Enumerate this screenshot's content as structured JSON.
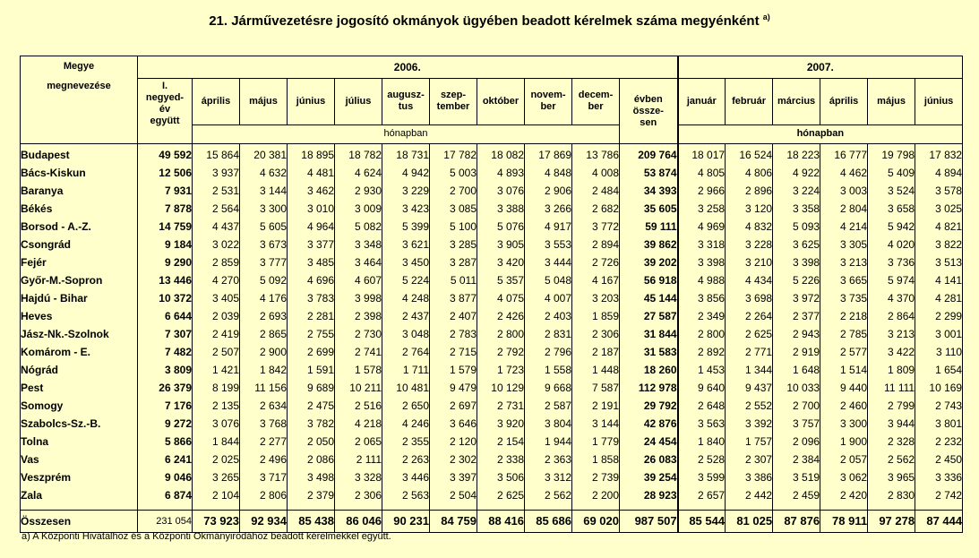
{
  "title": "21. Járművezetésre jogosító okmányok ügyében beadott kérelmek száma megyénként",
  "title_sup": "a)",
  "header": {
    "county_col": [
      "Megye",
      "megnevezése"
    ],
    "year_2006": "2006.",
    "year_2007": "2007.",
    "q1_2006": [
      "I.",
      "negyed-",
      "év",
      "együtt"
    ],
    "months_2006": [
      [
        "április"
      ],
      [
        "május"
      ],
      [
        "június"
      ],
      [
        "július"
      ],
      [
        "augusz-",
        "tus"
      ],
      [
        "szep-",
        "tember"
      ],
      [
        "október"
      ],
      [
        "novem-",
        "ber"
      ],
      [
        "decem-",
        "ber"
      ]
    ],
    "year_total": [
      "évben",
      "össze-",
      "sen"
    ],
    "months_2007": [
      "január",
      "február",
      "március",
      "április",
      "május",
      "június"
    ],
    "honapban": "hónapban"
  },
  "rows": [
    {
      "name": "Budapest",
      "q1": "49 592",
      "m06": [
        "15 864",
        "20 381",
        "18 895",
        "18 782",
        "18 731",
        "17 782",
        "18 082",
        "17 869",
        "13 786"
      ],
      "total": "209 764",
      "m07": [
        "18 017",
        "16 524",
        "18 223",
        "16 777",
        "19 798",
        "17 832"
      ]
    },
    {
      "name": "Bács-Kiskun",
      "q1": "12 506",
      "m06": [
        "3 937",
        "4 632",
        "4 481",
        "4 624",
        "4 942",
        "5 003",
        "4 893",
        "4 848",
        "4 008"
      ],
      "total": "53 874",
      "m07": [
        "4 805",
        "4 806",
        "4 922",
        "4 462",
        "5 409",
        "4 894"
      ]
    },
    {
      "name": "Baranya",
      "q1": "7 931",
      "m06": [
        "2 531",
        "3 144",
        "3 462",
        "2 930",
        "3 229",
        "2 700",
        "3 076",
        "2 906",
        "2 484"
      ],
      "total": "34 393",
      "m07": [
        "2 966",
        "2 896",
        "3 224",
        "3 003",
        "3 524",
        "3 578"
      ]
    },
    {
      "name": "Békés",
      "q1": "7 878",
      "m06": [
        "2 564",
        "3 300",
        "3 010",
        "3 009",
        "3 423",
        "3 085",
        "3 388",
        "3 266",
        "2 682"
      ],
      "total": "35 605",
      "m07": [
        "3 258",
        "3 120",
        "3 358",
        "2 804",
        "3 658",
        "3 025"
      ]
    },
    {
      "name": "Borsod - A.-Z.",
      "q1": "14 759",
      "m06": [
        "4 437",
        "5 605",
        "4 964",
        "5 082",
        "5 399",
        "5 100",
        "5 076",
        "4 917",
        "3 772"
      ],
      "total": "59 111",
      "m07": [
        "4 969",
        "4 832",
        "5 093",
        "4 214",
        "5 942",
        "4 821"
      ]
    },
    {
      "name": "Csongrád",
      "q1": "9 184",
      "m06": [
        "3 022",
        "3 673",
        "3 377",
        "3 348",
        "3 621",
        "3 285",
        "3 905",
        "3 553",
        "2 894"
      ],
      "total": "39 862",
      "m07": [
        "3 318",
        "3 228",
        "3 625",
        "3 305",
        "4 020",
        "3 822"
      ]
    },
    {
      "name": "Fejér",
      "q1": "9 290",
      "m06": [
        "2 859",
        "3 777",
        "3 485",
        "3 464",
        "3 450",
        "3 287",
        "3 420",
        "3 444",
        "2 726"
      ],
      "total": "39 202",
      "m07": [
        "3 398",
        "3 210",
        "3 398",
        "3 213",
        "3 736",
        "3 513"
      ]
    },
    {
      "name": "Győr-M.-Sopron",
      "q1": "13 446",
      "m06": [
        "4 270",
        "5 092",
        "4 696",
        "4 607",
        "5 224",
        "5 011",
        "5 357",
        "5 048",
        "4 167"
      ],
      "total": "56 918",
      "m07": [
        "4 988",
        "4 434",
        "5 226",
        "3 665",
        "5 974",
        "4 141"
      ]
    },
    {
      "name": "Hajdú - Bihar",
      "q1": "10 372",
      "m06": [
        "3 405",
        "4 176",
        "3 783",
        "3 998",
        "4 248",
        "3 877",
        "4 075",
        "4 007",
        "3 203"
      ],
      "total": "45 144",
      "m07": [
        "3 856",
        "3 698",
        "3 972",
        "3 735",
        "4 370",
        "4 281"
      ]
    },
    {
      "name": "Heves",
      "q1": "6 644",
      "m06": [
        "2 039",
        "2 693",
        "2 281",
        "2 398",
        "2 437",
        "2 407",
        "2 426",
        "2 403",
        "1 859"
      ],
      "total": "27 587",
      "m07": [
        "2 349",
        "2 264",
        "2 377",
        "2 218",
        "2 864",
        "2 299"
      ]
    },
    {
      "name": "Jász-Nk.-Szolnok",
      "q1": "7 307",
      "m06": [
        "2 419",
        "2 865",
        "2 755",
        "2 730",
        "3 048",
        "2 783",
        "2 800",
        "2 831",
        "2 306"
      ],
      "total": "31 844",
      "m07": [
        "2 800",
        "2 625",
        "2 943",
        "2 785",
        "3 213",
        "3 001"
      ]
    },
    {
      "name": "Komárom - E.",
      "q1": "7 482",
      "m06": [
        "2 507",
        "2 900",
        "2 699",
        "2 741",
        "2 764",
        "2 715",
        "2 792",
        "2 796",
        "2 187"
      ],
      "total": "31 583",
      "m07": [
        "2 892",
        "2 771",
        "2 919",
        "2 577",
        "3 422",
        "3 110"
      ]
    },
    {
      "name": "Nógrád",
      "q1": "3 809",
      "m06": [
        "1 421",
        "1 842",
        "1 591",
        "1 578",
        "1 711",
        "1 579",
        "1 723",
        "1 558",
        "1 448"
      ],
      "total": "18 260",
      "m07": [
        "1 453",
        "1 344",
        "1 648",
        "1 514",
        "1 809",
        "1 654"
      ]
    },
    {
      "name": "Pest",
      "q1": "26 379",
      "m06": [
        "8 199",
        "11 156",
        "9 689",
        "10 211",
        "10 481",
        "9 479",
        "10 129",
        "9 668",
        "7 587"
      ],
      "total": "112 978",
      "m07": [
        "9 640",
        "9 437",
        "10 033",
        "9 440",
        "11 111",
        "10 169"
      ]
    },
    {
      "name": "Somogy",
      "q1": "7 176",
      "m06": [
        "2 135",
        "2 634",
        "2 475",
        "2 516",
        "2 650",
        "2 697",
        "2 731",
        "2 587",
        "2 191"
      ],
      "total": "29 792",
      "m07": [
        "2 648",
        "2 552",
        "2 700",
        "2 460",
        "2 799",
        "2 743"
      ]
    },
    {
      "name": "Szabolcs-Sz.-B.",
      "q1": "9 272",
      "m06": [
        "3 076",
        "3 768",
        "3 782",
        "4 218",
        "4 246",
        "3 646",
        "3 920",
        "3 804",
        "3 144"
      ],
      "total": "42 876",
      "m07": [
        "3 563",
        "3 392",
        "3 757",
        "3 300",
        "3 944",
        "3 801"
      ]
    },
    {
      "name": "Tolna",
      "q1": "5 866",
      "m06": [
        "1 844",
        "2 277",
        "2 050",
        "2 065",
        "2 355",
        "2 120",
        "2 154",
        "1 944",
        "1 779"
      ],
      "total": "24 454",
      "m07": [
        "1 840",
        "1 757",
        "2 096",
        "1 900",
        "2 328",
        "2 232"
      ]
    },
    {
      "name": "Vas",
      "q1": "6 241",
      "m06": [
        "2 025",
        "2 496",
        "2 086",
        "2 111",
        "2 263",
        "2 302",
        "2 338",
        "2 363",
        "1 858"
      ],
      "total": "26 083",
      "m07": [
        "2 528",
        "2 307",
        "2 384",
        "2 057",
        "2 562",
        "2 450"
      ]
    },
    {
      "name": "Veszprém",
      "q1": "9 046",
      "m06": [
        "3 265",
        "3 717",
        "3 498",
        "3 328",
        "3 446",
        "3 397",
        "3 506",
        "3 312",
        "2 739"
      ],
      "total": "39 254",
      "m07": [
        "3 599",
        "3 386",
        "3 519",
        "3 062",
        "3 965",
        "3 336"
      ]
    },
    {
      "name": "Zala",
      "q1": "6 874",
      "m06": [
        "2 104",
        "2 806",
        "2 379",
        "2 306",
        "2 563",
        "2 504",
        "2 625",
        "2 562",
        "2 200"
      ],
      "total": "28 923",
      "m07": [
        "2 657",
        "2 442",
        "2 459",
        "2 420",
        "2 830",
        "2 742"
      ]
    }
  ],
  "total_row": {
    "name": "Összesen",
    "q1": "231 054",
    "m06": [
      "73 923",
      "92 934",
      "85 438",
      "86 046",
      "90 231",
      "84 759",
      "88 416",
      "85 686",
      "69 020"
    ],
    "total": "987 507",
    "m07": [
      "85 544",
      "81 025",
      "87 876",
      "78 911",
      "97 278",
      "87 444"
    ]
  },
  "footnote": "a) A Központi Hivatalhoz és a Központi Okmányirodához beadott kérelmekkel együtt."
}
